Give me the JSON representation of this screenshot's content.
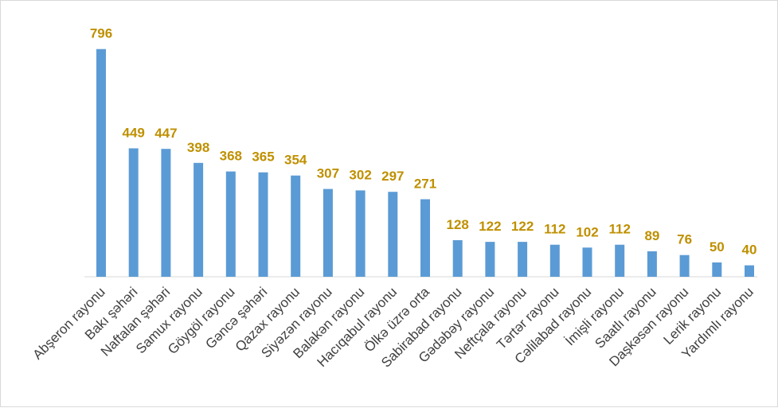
{
  "chart_data": {
    "type": "bar",
    "title": "",
    "xlabel": "",
    "ylabel": "",
    "categories": [
      "Abşeron rayonu",
      "Bakı şəhəri",
      "Naftalan şəhəri",
      "Samux rayonu",
      "Göygöl rayonu",
      "Gəncə şəhəri",
      "Qazax rayonu",
      "Siyəzən  rayonu",
      "Balakən rayonu",
      "Hacıqabul rayonu",
      "Ölkə üzrə orta",
      "Sabirabad rayonu",
      "Gədəbəy rayonu",
      "Neftçala rayonu",
      "Tərtər rayonu",
      "Cəlilabad  rayonu",
      "İmişli rayonu",
      "Saatlı rayonu",
      "Daşkəsən rayonu",
      "Lerik rayonu",
      "Yardımlı  rayonu"
    ],
    "values": [
      796,
      449,
      447,
      398,
      368,
      365,
      354,
      307,
      302,
      297,
      271,
      128,
      122,
      122,
      112,
      102,
      112,
      89,
      76,
      50,
      40
    ],
    "ylim": [
      0,
      800
    ],
    "grid": false,
    "legend": "none",
    "bar_color": "#5b9bd5",
    "label_color": "#bf9000"
  }
}
